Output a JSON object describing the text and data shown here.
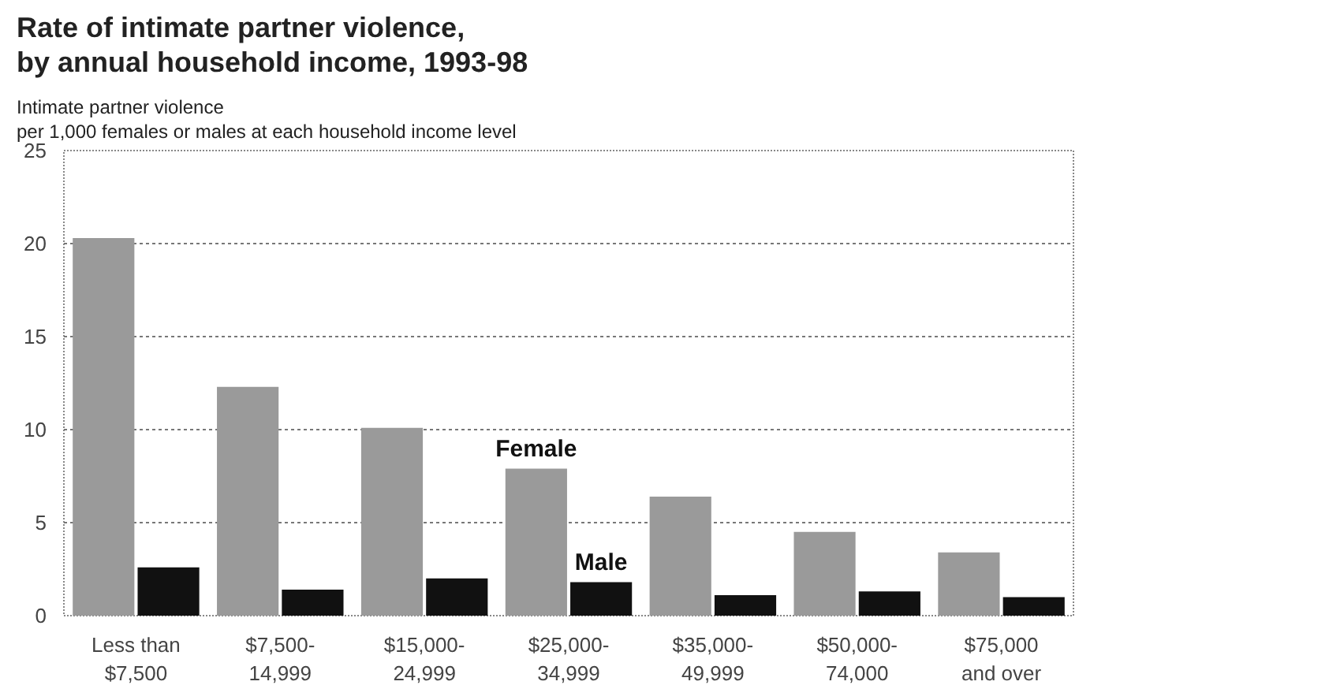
{
  "chart_data": {
    "type": "bar",
    "title": "Rate of intimate partner violence,\nby annual household income, 1993-98",
    "ylabel": "Intimate partner violence\nper 1,000 females or males at each household income level",
    "categories": [
      "Less than\n$7,500",
      "$7,500-\n14,999",
      "$15,000-\n24,999",
      "$25,000-\n34,999",
      "$35,000-\n49,999",
      "$50,000-\n74,000",
      "$75,000\nand over"
    ],
    "series": [
      {
        "name": "Female",
        "color": "#9a9a9a",
        "values": [
          20.3,
          12.3,
          10.1,
          7.9,
          6.4,
          4.5,
          3.4
        ]
      },
      {
        "name": "Male",
        "color": "#111111",
        "values": [
          2.6,
          1.4,
          2.0,
          1.8,
          1.1,
          1.3,
          1.0
        ]
      }
    ],
    "ylim": [
      0,
      25
    ],
    "yticks": [
      0,
      5,
      10,
      15,
      20,
      25
    ],
    "grid": "y"
  }
}
